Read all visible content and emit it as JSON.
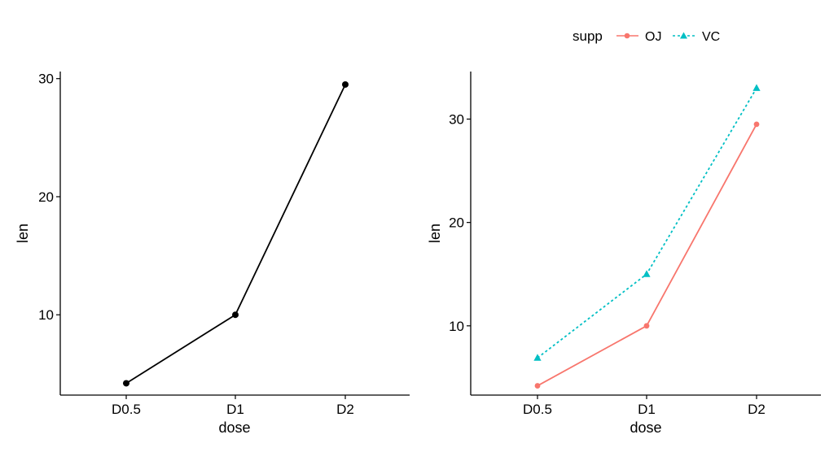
{
  "chart_data": [
    {
      "type": "line",
      "categories": [
        "D0.5",
        "D1",
        "D2"
      ],
      "series": [
        {
          "values": [
            4.2,
            10.0,
            29.5
          ],
          "color": "#000000",
          "marker": "circle",
          "dash": "solid"
        }
      ],
      "xlabel": "dose",
      "ylabel": "len",
      "ylim": [
        3.2,
        30.6
      ],
      "yticks": [
        10,
        20,
        30
      ],
      "grid": false,
      "legend": null
    },
    {
      "type": "line",
      "categories": [
        "D0.5",
        "D1",
        "D2"
      ],
      "series": [
        {
          "name": "OJ",
          "values": [
            4.2,
            10.0,
            29.5
          ],
          "color": "#F8766D",
          "marker": "circle",
          "dash": "solid"
        },
        {
          "name": "VC",
          "values": [
            6.9,
            15.0,
            33.0
          ],
          "color": "#00BFC4",
          "marker": "triangle",
          "dash": "dashed"
        }
      ],
      "xlabel": "dose",
      "ylabel": "len",
      "ylim": [
        3.3,
        34.6
      ],
      "yticks": [
        10,
        20,
        30
      ],
      "grid": false,
      "legend": {
        "title": "supp",
        "position": "top"
      }
    }
  ]
}
